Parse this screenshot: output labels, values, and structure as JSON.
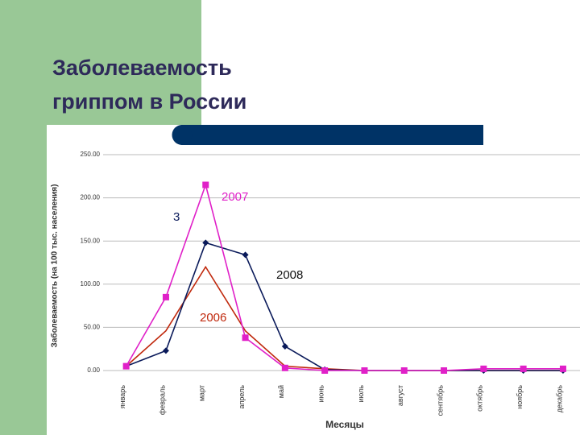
{
  "header": {
    "title_lines": [
      "Заболеваемость",
      "гриппом в России"
    ]
  },
  "chart_data": {
    "type": "line",
    "y_label": "Заболеваемость (на 100 тыс. населения)",
    "x_label": "Месяцы",
    "categories": [
      "январь",
      "февраль",
      "март",
      "апрель",
      "май",
      "июнь",
      "июль",
      "август",
      "сентябрь",
      "октябрь",
      "ноябрь",
      "декабрь"
    ],
    "series": [
      {
        "name": "2006",
        "color": "#c0280c",
        "marker": "none",
        "values": [
          5,
          46,
          120,
          46,
          5,
          2,
          0,
          0,
          0,
          0,
          0,
          0
        ]
      },
      {
        "name": "2008",
        "color": "#0a1a5a",
        "marker": "diamond",
        "values": [
          5,
          23,
          148,
          134,
          28,
          1,
          0,
          0,
          0,
          0,
          0,
          0
        ]
      },
      {
        "name": "2007",
        "color": "#e020c8",
        "marker": "square",
        "values": [
          5,
          85,
          215,
          38,
          3,
          0,
          0,
          0,
          0,
          2,
          2,
          2
        ]
      }
    ],
    "annotations": [
      {
        "text": "3",
        "color": "#0a1a5a"
      }
    ],
    "ylim": [
      0,
      250
    ],
    "yticks": [
      {
        "value": 0,
        "label": "0.00"
      },
      {
        "value": 50,
        "label": "50.00"
      },
      {
        "value": 100,
        "label": "100.00"
      },
      {
        "value": 150,
        "label": "150.00"
      },
      {
        "value": 200,
        "label": "200.00"
      },
      {
        "value": 250,
        "label": "250.00"
      }
    ],
    "grid": true
  }
}
